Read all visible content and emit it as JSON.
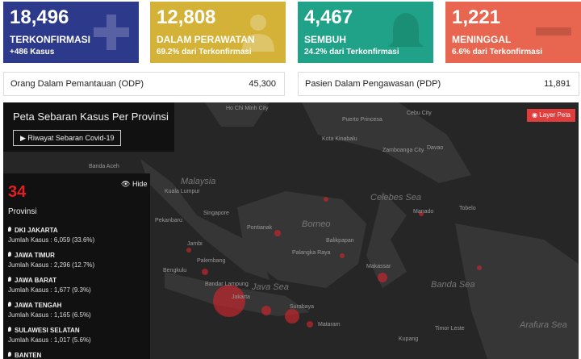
{
  "cards": [
    {
      "value": "18,496",
      "label": "TERKONFIRMASI",
      "sub": "+486 Kasus"
    },
    {
      "value": "12,808",
      "label": "DALAM PERAWATAN",
      "sub": "69.2% dari Terkonfirmasi"
    },
    {
      "value": "4,467",
      "label": "SEMBUH",
      "sub": "24.2% dari Terkonfirmasi"
    },
    {
      "value": "1,221",
      "label": "MENINGGAL",
      "sub": "6.6% dari Terkonfirmasi"
    }
  ],
  "stats": [
    {
      "label": "Orang Dalam Pemantauan (ODP)",
      "value": "45,300"
    },
    {
      "label": "Pasien Dalam Pengawasan (PDP)",
      "value": "11,891"
    }
  ],
  "map": {
    "title": "Peta Sebaran Kasus Per Provinsi",
    "history_button": "Riwayat Sebaran Covid-19",
    "layer_button": "Layer Peta",
    "panel": {
      "count": "34",
      "count_label": "Provinsi",
      "hide": "Hide",
      "provinces": [
        {
          "name": "DKI JAKARTA",
          "detail": "Jumlah Kasus : 6,059 (33.6%)"
        },
        {
          "name": "JAWA TIMUR",
          "detail": "Jumlah Kasus : 2,296 (12.7%)"
        },
        {
          "name": "JAWA BARAT",
          "detail": "Jumlah Kasus : 1,677 (9.3%)"
        },
        {
          "name": "JAWA TENGAH",
          "detail": "Jumlah Kasus : 1,165 (6.5%)"
        },
        {
          "name": "SULAWESI SELATAN",
          "detail": "Jumlah Kasus : 1,017 (5.6%)"
        },
        {
          "name": "BANTEN",
          "detail": ""
        }
      ]
    },
    "labels": [
      "Ho Chi Minh City",
      "Puerto Princesa",
      "Cebu City",
      "Zamboanga City",
      "Davao",
      "Kota Kinabalu",
      "Banda Aceh",
      "Malaysia",
      "Kuala Lumpur",
      "Singapore",
      "Pekanbaru",
      "Jambi",
      "Palembang",
      "Bengkulu",
      "Bandar Lampung",
      "Jakarta",
      "Java Sea",
      "Surabaya",
      "Mataram",
      "Pontianak",
      "Borneo",
      "Palangka Raya",
      "Balikpapan",
      "Celebes Sea",
      "Manado",
      "Tobelo",
      "Makassar",
      "Banda Sea",
      "Arafura Sea",
      "Timor Leste",
      "Kupang"
    ]
  }
}
